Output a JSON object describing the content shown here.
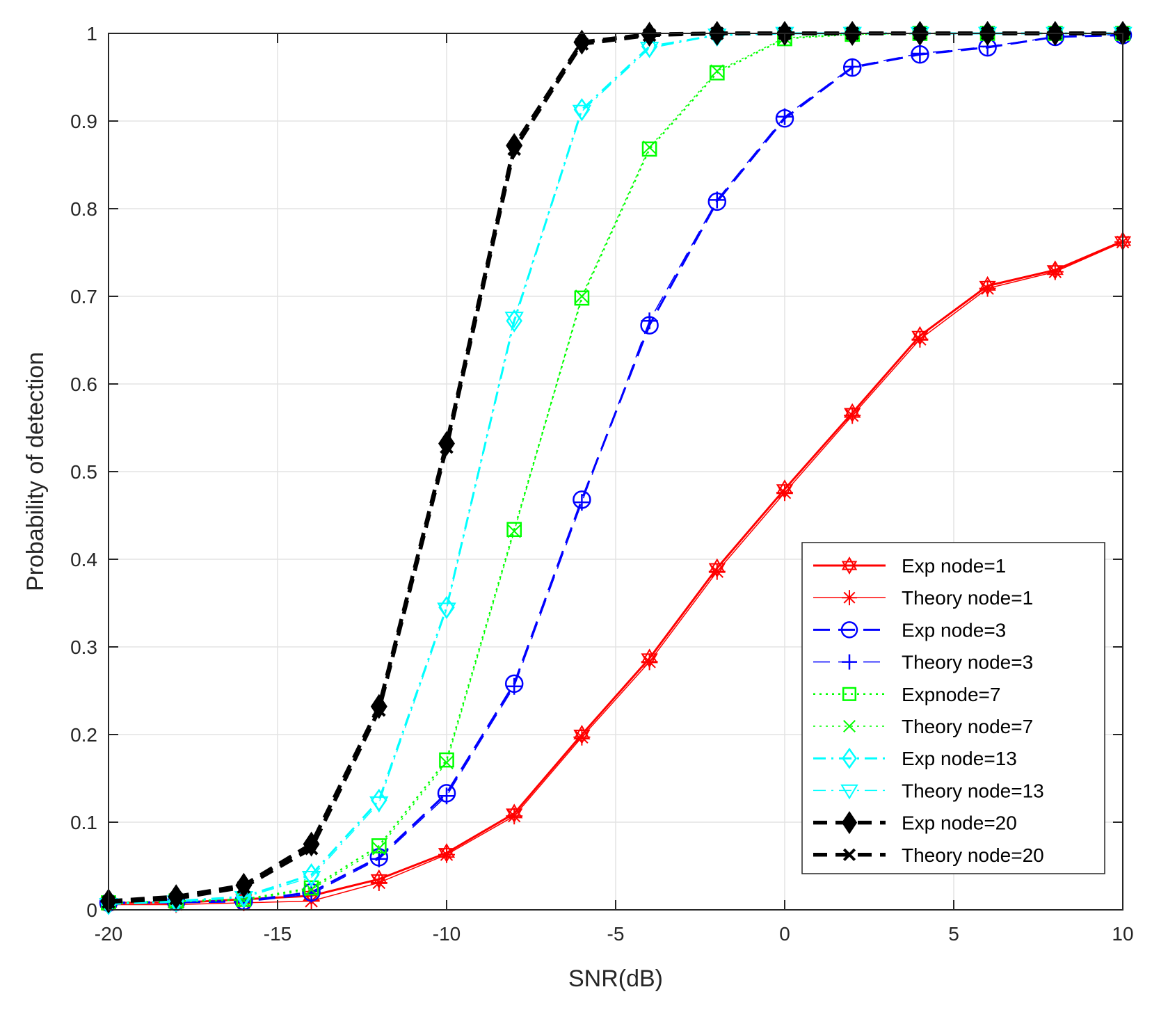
{
  "chart_data": {
    "type": "line",
    "title": "",
    "xlabel": "SNR(dB)",
    "ylabel": "Probability of detection",
    "xlim": [
      -20,
      10
    ],
    "ylim": [
      0,
      1
    ],
    "xticks": [
      -20,
      -15,
      -10,
      -5,
      0,
      5,
      10
    ],
    "xtick_labels": [
      "-20",
      "-15",
      "-10",
      "-5",
      "0",
      "5",
      "10"
    ],
    "yticks": [
      0,
      0.1,
      0.2,
      0.3,
      0.4,
      0.5,
      0.6,
      0.7,
      0.8,
      0.9,
      1
    ],
    "ytick_labels": [
      "0",
      "0.1",
      "0.2",
      "0.3",
      "0.4",
      "0.5",
      "0.6",
      "0.7",
      "0.8",
      "0.9",
      "1"
    ],
    "grid": true,
    "legend_position": "bottom-right",
    "x": [
      -20,
      -18,
      -16,
      -14,
      -12,
      -10,
      -8,
      -6,
      -4,
      -2,
      0,
      2,
      4,
      6,
      8,
      10
    ],
    "series": [
      {
        "name": "Exp node=1",
        "color": "#ff0000",
        "dash": "solid",
        "width": 3,
        "marker": "hexagram",
        "values": [
          0.008,
          0.008,
          0.012,
          0.016,
          0.035,
          0.065,
          0.11,
          0.2,
          0.287,
          0.39,
          0.48,
          0.567,
          0.655,
          0.712,
          0.73,
          0.763
        ]
      },
      {
        "name": "Theory node=1",
        "color": "#ff0000",
        "dash": "solid",
        "width": 1.5,
        "marker": "asterisk",
        "values": [
          0.006,
          0.006,
          0.008,
          0.01,
          0.031,
          0.063,
          0.107,
          0.197,
          0.283,
          0.386,
          0.476,
          0.564,
          0.651,
          0.709,
          0.728,
          0.762
        ]
      },
      {
        "name": "Exp node=3",
        "color": "#0000ff",
        "dash": "long-dash",
        "width": 3,
        "marker": "circle",
        "values": [
          0.008,
          0.009,
          0.01,
          0.02,
          0.06,
          0.133,
          0.258,
          0.468,
          0.667,
          0.808,
          0.903,
          0.961,
          0.976,
          0.984,
          0.996,
          0.998
        ]
      },
      {
        "name": "Theory node=3",
        "color": "#0000ff",
        "dash": "long-dash",
        "width": 1.5,
        "marker": "plus",
        "values": [
          0.007,
          0.008,
          0.009,
          0.018,
          0.058,
          0.13,
          0.255,
          0.465,
          0.672,
          0.81,
          0.905,
          0.962,
          0.977,
          0.985,
          0.996,
          0.999
        ]
      },
      {
        "name": "Expnode=7",
        "color": "#00ff00",
        "dash": "dotted",
        "width": 2.5,
        "marker": "square",
        "values": [
          0.008,
          0.01,
          0.012,
          0.025,
          0.073,
          0.171,
          0.434,
          0.698,
          0.868,
          0.955,
          0.994,
          0.999,
          1.0,
          1.0,
          1.0,
          1.0
        ]
      },
      {
        "name": "Theory node=7",
        "color": "#00ff00",
        "dash": "dotted",
        "width": 1.5,
        "marker": "x",
        "values": [
          0.007,
          0.009,
          0.011,
          0.023,
          0.07,
          0.168,
          0.432,
          0.7,
          0.87,
          0.957,
          0.995,
          0.999,
          1.0,
          1.0,
          1.0,
          1.0
        ]
      },
      {
        "name": "Exp node=13",
        "color": "#00ffff",
        "dash": "dash-dot",
        "width": 3,
        "marker": "diamond",
        "values": [
          0.007,
          0.01,
          0.015,
          0.04,
          0.125,
          0.345,
          0.672,
          0.913,
          0.985,
          0.998,
          1.0,
          1.0,
          1.0,
          1.0,
          1.0,
          1.0
        ]
      },
      {
        "name": "Theory node=13",
        "color": "#00ffff",
        "dash": "dash-dot",
        "width": 1.5,
        "marker": "triangle-down",
        "values": [
          0.006,
          0.009,
          0.014,
          0.037,
          0.122,
          0.343,
          0.675,
          0.911,
          0.983,
          0.998,
          1.0,
          1.0,
          1.0,
          1.0,
          1.0,
          1.0
        ]
      },
      {
        "name": "Exp node=20",
        "color": "#000000",
        "dash": "dashed",
        "width": 5.5,
        "marker": "diamond-filled",
        "values": [
          0.01,
          0.015,
          0.028,
          0.075,
          0.232,
          0.532,
          0.872,
          0.99,
          0.999,
          1.0,
          1.0,
          1.0,
          1.0,
          1.0,
          1.0,
          1.0
        ]
      },
      {
        "name": "Theory node=20",
        "color": "#000000",
        "dash": "dashed",
        "width": 5.5,
        "marker": "x-bold",
        "values": [
          0.009,
          0.013,
          0.026,
          0.07,
          0.228,
          0.528,
          0.868,
          0.988,
          0.998,
          1.0,
          1.0,
          1.0,
          1.0,
          1.0,
          1.0,
          1.0
        ]
      }
    ]
  }
}
